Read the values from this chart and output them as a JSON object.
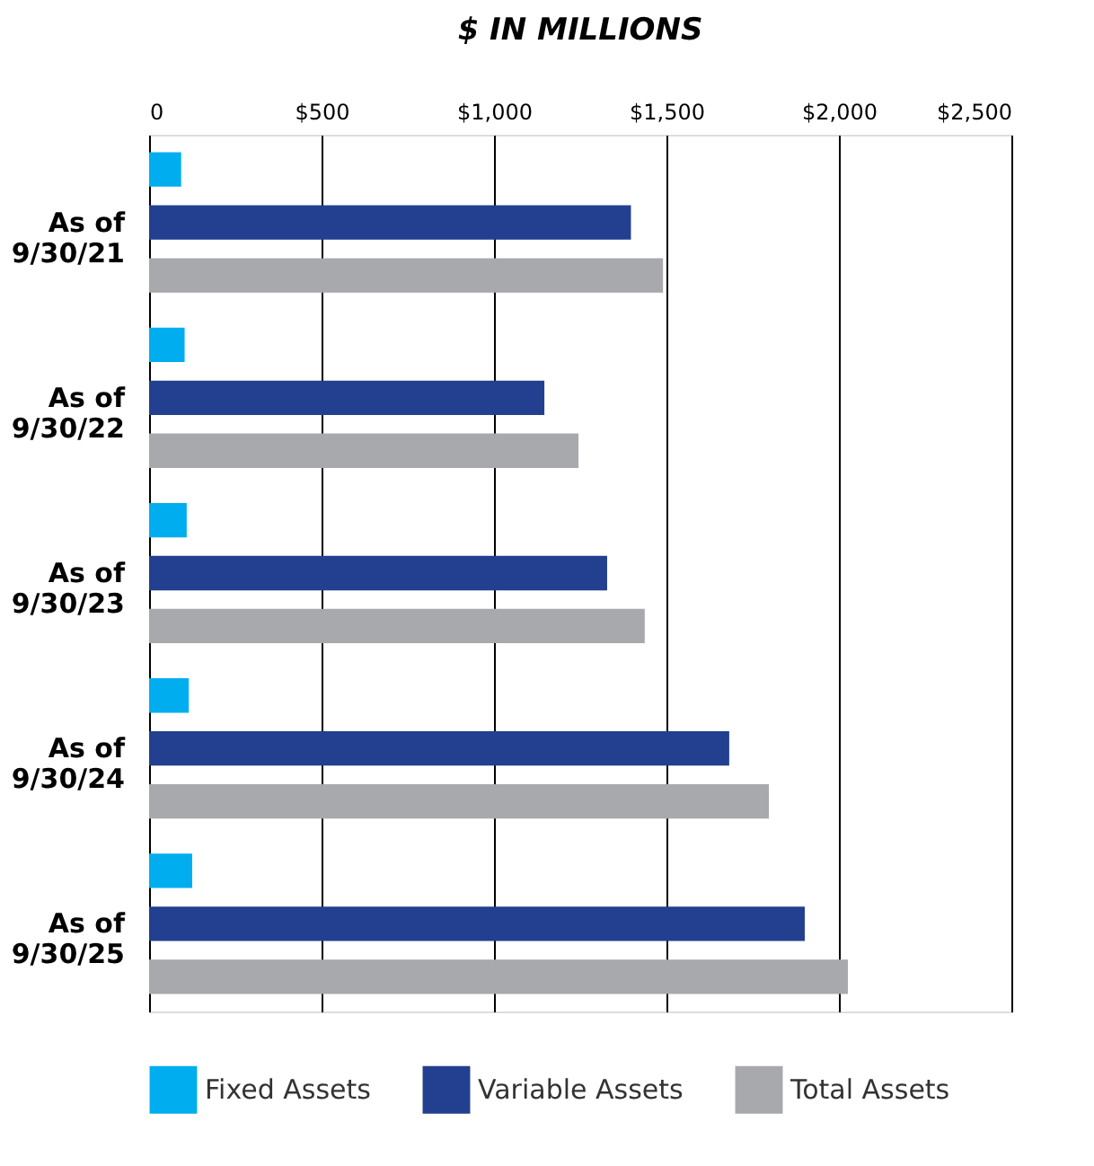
{
  "chart_data": {
    "type": "bar",
    "orientation": "horizontal",
    "title": "$ IN MILLIONS",
    "categories": [
      "As of 9/30/21",
      "As of 9/30/22",
      "As of 9/30/23",
      "As of 9/30/24",
      "As of 9/30/25"
    ],
    "series": [
      {
        "name": "Fixed Assets",
        "color": "#00aeef",
        "values": [
          93,
          103,
          109,
          115,
          125
        ]
      },
      {
        "name": "Variable Assets",
        "color": "#233f8f",
        "values": [
          1397,
          1146,
          1328,
          1682,
          1901
        ]
      },
      {
        "name": "Total Assets",
        "color": "#a7a9ac",
        "values": [
          1490,
          1245,
          1437,
          1797,
          2026
        ]
      }
    ],
    "xlim": [
      0,
      2500
    ],
    "xticks": [
      {
        "value": 0,
        "label": "0"
      },
      {
        "value": 500,
        "label": "$500"
      },
      {
        "value": 1000,
        "label": "$1,000"
      },
      {
        "value": 1500,
        "label": "$1,500"
      },
      {
        "value": 2000,
        "label": "$2,000"
      },
      {
        "value": 2500,
        "label": "$2,500"
      }
    ],
    "grid": "x",
    "legend": "bottom"
  }
}
